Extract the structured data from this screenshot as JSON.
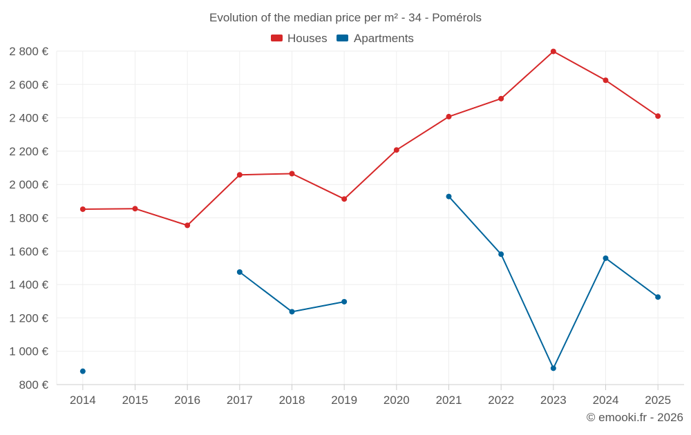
{
  "chart_data": {
    "type": "line",
    "title": "Evolution of the median price per m² - 34 - Pomérols",
    "categories": [
      "2014",
      "2015",
      "2016",
      "2017",
      "2018",
      "2019",
      "2020",
      "2021",
      "2022",
      "2023",
      "2024",
      "2025"
    ],
    "series": [
      {
        "name": "Houses",
        "color": "#d62728",
        "values": [
          1852,
          1855,
          1755,
          2058,
          2065,
          1913,
          2207,
          2407,
          2515,
          2798,
          2625,
          2410
        ]
      },
      {
        "name": "Apartments",
        "color": "#00659c",
        "values": [
          880,
          null,
          null,
          1475,
          1237,
          1297,
          null,
          1928,
          1582,
          898,
          1558,
          1325
        ]
      }
    ],
    "ylim": [
      800,
      2800
    ],
    "yticks": [
      800,
      1000,
      1200,
      1400,
      1600,
      1800,
      2000,
      2200,
      2400,
      2600,
      2800
    ],
    "ytick_labels": [
      "800 €",
      "1 000 €",
      "1 200 €",
      "1 400 €",
      "1 600 €",
      "1 800 €",
      "2 000 €",
      "2 200 €",
      "2 400 €",
      "2 600 €",
      "2 800 €"
    ],
    "xlabel": "",
    "ylabel": "",
    "grid": true,
    "legend_position": "top-center",
    "credit": "© emooki.fr - 2026"
  },
  "colors": {
    "text": "#555555",
    "grid": "#eeeeee",
    "axis": "#cccccc"
  }
}
